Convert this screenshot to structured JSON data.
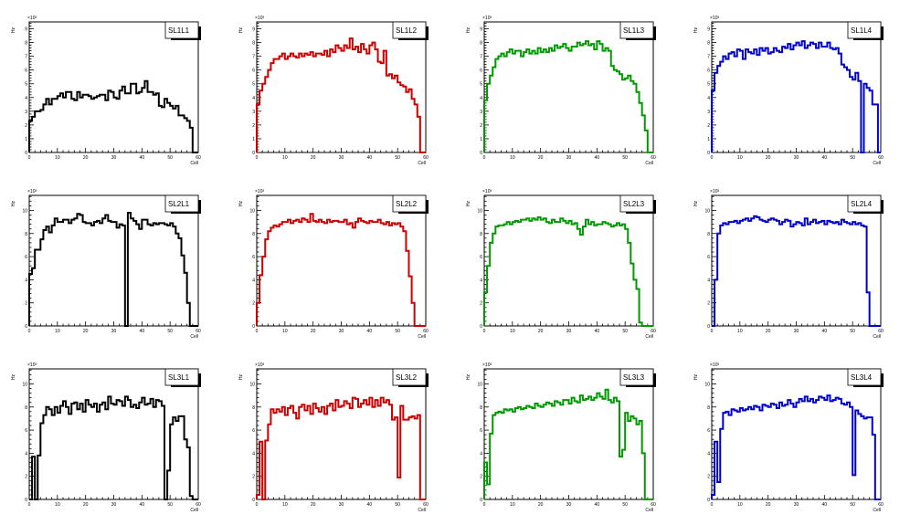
{
  "chart_data": [
    {
      "type": "bar",
      "title": "SL1L1",
      "color": "#000000",
      "xlabel": "Cell",
      "ylabel": "Hz",
      "exponent": "×10³",
      "xlim": [
        0,
        60
      ],
      "ylim": [
        0,
        9.5
      ],
      "yticks": [
        "0",
        "1",
        "2",
        "3",
        "4",
        "5",
        "6",
        "7",
        "8",
        "9"
      ],
      "ytick_values": [
        0,
        1,
        2,
        3,
        4,
        5,
        6,
        7,
        8,
        9
      ],
      "values": [
        2.3,
        2.6,
        3.0,
        3.0,
        3.1,
        3.5,
        3.9,
        3.5,
        3.9,
        3.9,
        4.1,
        4.3,
        4.0,
        4.4,
        4.4,
        3.9,
        3.8,
        4.4,
        4.0,
        4.2,
        4.2,
        4.1,
        3.9,
        4.0,
        4.1,
        4.2,
        4.2,
        3.8,
        4.5,
        4.4,
        4.0,
        3.9,
        4.5,
        4.8,
        4.3,
        4.3,
        5.0,
        5.0,
        4.3,
        4.4,
        4.7,
        5.2,
        4.4,
        4.4,
        4.2,
        4.3,
        3.4,
        3.3,
        3.9,
        3.6,
        3.4,
        3.2,
        3.4,
        2.7,
        2.7,
        2.5,
        2.3,
        1.8,
        0,
        0
      ]
    },
    {
      "type": "bar",
      "title": "SL1L2",
      "color": "#cc0000",
      "xlabel": "Cell",
      "ylabel": "Hz",
      "exponent": "×10³",
      "xlim": [
        0,
        60
      ],
      "ylim": [
        0,
        9.5
      ],
      "yticks": [
        "0",
        "1",
        "2",
        "3",
        "4",
        "5",
        "6",
        "7",
        "8",
        "9"
      ],
      "ytick_values": [
        0,
        1,
        2,
        3,
        4,
        5,
        6,
        7,
        8,
        9
      ],
      "values": [
        3.5,
        4.5,
        5.0,
        5.5,
        6.0,
        6.5,
        6.8,
        6.8,
        7.0,
        7.2,
        6.8,
        7.0,
        7.2,
        7.0,
        6.9,
        7.2,
        7.0,
        7.2,
        7.1,
        7.3,
        7.0,
        7.2,
        7.2,
        7.1,
        7.4,
        7.0,
        7.5,
        7.3,
        7.8,
        7.6,
        7.4,
        7.8,
        7.6,
        8.3,
        7.5,
        7.7,
        7.3,
        7.9,
        7.5,
        7.2,
        7.8,
        8.0,
        7.5,
        6.6,
        6.5,
        7.4,
        5.6,
        5.7,
        5.4,
        5.6,
        5.1,
        4.9,
        4.8,
        4.4,
        4.6,
        3.9,
        3.5,
        2.6,
        0,
        0
      ]
    },
    {
      "type": "bar",
      "title": "SL1L3",
      "color": "#009900",
      "xlabel": "Cell",
      "ylabel": "Hz",
      "exponent": "×10³",
      "xlim": [
        0,
        60
      ],
      "ylim": [
        0,
        9.5
      ],
      "yticks": [
        "0",
        "1",
        "2",
        "3",
        "4",
        "5",
        "6",
        "7",
        "8",
        "9"
      ],
      "ytick_values": [
        0,
        1,
        2,
        3,
        4,
        5,
        6,
        7,
        8,
        9
      ],
      "values": [
        3.8,
        5.0,
        5.6,
        6.2,
        6.8,
        7.0,
        7.2,
        7.0,
        7.3,
        7.5,
        7.2,
        7.4,
        7.4,
        7.0,
        7.3,
        7.5,
        7.2,
        7.4,
        7.2,
        7.6,
        7.3,
        7.5,
        7.3,
        7.6,
        7.4,
        7.8,
        7.6,
        7.7,
        7.9,
        7.6,
        7.4,
        7.7,
        7.7,
        8.0,
        7.8,
        7.9,
        8.1,
        7.8,
        7.9,
        7.5,
        8.1,
        7.9,
        7.4,
        7.6,
        7.4,
        6.3,
        6.0,
        5.9,
        5.7,
        5.3,
        5.4,
        5.6,
        5.2,
        5.0,
        4.4,
        3.6,
        2.7,
        1.6,
        0,
        0
      ]
    },
    {
      "type": "bar",
      "title": "SL1L4",
      "color": "#0000cc",
      "xlabel": "Cell",
      "ylabel": "Hz",
      "exponent": "×10³",
      "xlim": [
        0,
        60
      ],
      "ylim": [
        0,
        9.5
      ],
      "yticks": [
        "0",
        "1",
        "2",
        "3",
        "4",
        "5",
        "6",
        "7",
        "8",
        "9"
      ],
      "ytick_values": [
        0,
        1,
        2,
        3,
        4,
        5,
        6,
        7,
        8,
        9
      ],
      "values": [
        4.5,
        5.8,
        6.3,
        6.6,
        7.0,
        6.8,
        7.2,
        7.3,
        7.0,
        7.5,
        7.4,
        6.8,
        7.5,
        7.3,
        7.2,
        7.5,
        7.1,
        7.6,
        7.4,
        7.6,
        7.2,
        7.3,
        7.6,
        7.4,
        7.3,
        7.7,
        7.6,
        7.9,
        7.5,
        7.8,
        8.0,
        7.8,
        8.1,
        7.6,
        7.8,
        8.0,
        7.9,
        7.6,
        8.0,
        7.7,
        7.7,
        8.0,
        7.6,
        7.5,
        7.6,
        7.2,
        6.4,
        6.2,
        6.0,
        5.5,
        5.3,
        5.8,
        5.2,
        0,
        5.0,
        4.7,
        4.5,
        3.5,
        3.5,
        0
      ]
    },
    {
      "type": "bar",
      "title": "SL2L1",
      "color": "#000000",
      "xlabel": "Cell",
      "ylabel": "Hz",
      "exponent": "×10³",
      "xlim": [
        0,
        60
      ],
      "ylim": [
        0,
        11.3
      ],
      "yticks": [
        "0",
        "2",
        "4",
        "6",
        "8",
        "10"
      ],
      "ytick_values": [
        0,
        2,
        4,
        6,
        8,
        10
      ],
      "values": [
        4.5,
        5.0,
        6.6,
        6.6,
        7.5,
        8.3,
        8.6,
        8.1,
        8.7,
        9.3,
        9.0,
        9.0,
        9.2,
        9.2,
        8.9,
        9.2,
        9.3,
        9.7,
        9.6,
        9.0,
        8.9,
        8.9,
        8.7,
        9.0,
        9.1,
        8.9,
        9.3,
        9.6,
        9.1,
        9.0,
        9.0,
        8.5,
        8.8,
        8.7,
        0,
        9.8,
        9.3,
        9.1,
        8.8,
        8.4,
        9.2,
        9.2,
        8.8,
        8.7,
        8.9,
        8.8,
        8.9,
        8.9,
        8.8,
        8.7,
        8.9,
        8.6,
        8.0,
        7.6,
        6.1,
        4.6,
        2.0,
        0,
        0,
        0
      ]
    },
    {
      "type": "bar",
      "title": "SL2L2",
      "color": "#cc0000",
      "xlabel": "Cell",
      "ylabel": "Hz",
      "exponent": "×10³",
      "xlim": [
        0,
        60
      ],
      "ylim": [
        0,
        11.3
      ],
      "yticks": [
        "0",
        "2",
        "4",
        "6",
        "8",
        "10"
      ],
      "ytick_values": [
        0,
        2,
        4,
        6,
        8,
        10
      ],
      "values": [
        2.0,
        4.4,
        6.0,
        7.5,
        8.2,
        8.5,
        8.7,
        8.6,
        8.8,
        9.0,
        9.0,
        9.2,
        8.9,
        9.1,
        9.2,
        9.0,
        9.3,
        9.2,
        9.0,
        9.7,
        9.1,
        9.0,
        9.2,
        9.0,
        8.9,
        9.2,
        9.0,
        9.1,
        9.1,
        9.0,
        9.0,
        9.2,
        8.8,
        8.9,
        8.5,
        9.0,
        9.3,
        9.1,
        9.0,
        8.9,
        9.1,
        9.0,
        9.0,
        9.2,
        8.9,
        8.8,
        9.0,
        8.7,
        8.9,
        8.8,
        8.9,
        8.6,
        8.2,
        6.5,
        4.3,
        2.0,
        0,
        0,
        0,
        0
      ]
    },
    {
      "type": "bar",
      "title": "SL2L3",
      "color": "#009900",
      "xlabel": "Cell",
      "ylabel": "Hz",
      "exponent": "×10³",
      "xlim": [
        0,
        60
      ],
      "ylim": [
        0,
        11.3
      ],
      "yticks": [
        "0",
        "2",
        "4",
        "6",
        "8",
        "10"
      ],
      "ytick_values": [
        0,
        2,
        4,
        6,
        8,
        10
      ],
      "values": [
        2.9,
        5.2,
        7.2,
        8.0,
        8.6,
        8.7,
        8.7,
        8.8,
        9.0,
        8.8,
        9.0,
        9.1,
        9.0,
        9.2,
        9.2,
        9.3,
        9.1,
        9.3,
        9.2,
        9.4,
        9.2,
        9.3,
        9.0,
        8.9,
        9.2,
        9.0,
        9.0,
        9.3,
        9.1,
        8.9,
        9.1,
        8.8,
        8.9,
        8.4,
        7.9,
        8.6,
        9.2,
        8.8,
        9.0,
        8.7,
        8.8,
        8.8,
        9.0,
        8.9,
        8.8,
        8.6,
        8.7,
        8.9,
        8.7,
        8.8,
        8.4,
        7.2,
        5.4,
        4.0,
        3.2,
        0.3,
        0,
        0,
        0,
        0
      ]
    },
    {
      "type": "bar",
      "title": "SL2L4",
      "color": "#0000cc",
      "xlabel": "Cell",
      "ylabel": "Hz",
      "exponent": "×10³",
      "xlim": [
        0,
        60
      ],
      "ylim": [
        0,
        11.3
      ],
      "yticks": [
        "0",
        "2",
        "4",
        "6",
        "8",
        "10"
      ],
      "ytick_values": [
        0,
        2,
        4,
        6,
        8,
        10
      ],
      "values": [
        0,
        4.0,
        8.0,
        8.7,
        8.9,
        8.8,
        9.0,
        9.0,
        9.1,
        8.9,
        9.1,
        9.2,
        9.3,
        9.1,
        9.3,
        9.5,
        9.4,
        9.2,
        9.1,
        9.0,
        9.2,
        9.3,
        9.2,
        9.1,
        8.8,
        9.0,
        9.2,
        9.1,
        8.6,
        8.8,
        9.0,
        8.9,
        8.7,
        9.3,
        8.8,
        9.0,
        9.2,
        8.9,
        9.0,
        9.1,
        8.8,
        9.1,
        9.0,
        8.9,
        9.0,
        8.8,
        9.2,
        9.0,
        8.9,
        8.8,
        9.0,
        8.8,
        8.9,
        8.7,
        8.6,
        2.9,
        0,
        0,
        0,
        0
      ]
    },
    {
      "type": "bar",
      "title": "SL3L1",
      "color": "#000000",
      "xlabel": "Cell",
      "ylabel": "Hz",
      "exponent": "×10³",
      "xlim": [
        0,
        60
      ],
      "ylim": [
        0,
        11.3
      ],
      "yticks": [
        "0",
        "2",
        "4",
        "6",
        "8",
        "10"
      ],
      "ytick_values": [
        0,
        2,
        4,
        6,
        8,
        10
      ],
      "values": [
        0,
        3.7,
        0,
        3.8,
        6.6,
        7.3,
        8.0,
        7.8,
        7.3,
        8.0,
        7.5,
        8.1,
        8.5,
        8.0,
        7.4,
        8.3,
        8.4,
        7.8,
        8.3,
        7.6,
        8.6,
        8.2,
        8.0,
        8.3,
        7.6,
        8.2,
        8.4,
        7.8,
        8.9,
        8.3,
        8.2,
        8.6,
        8.5,
        8.1,
        8.9,
        8.6,
        8.0,
        8.2,
        7.9,
        8.4,
        8.8,
        8.2,
        8.3,
        8.7,
        8.0,
        8.6,
        8.5,
        8.1,
        0,
        2.5,
        6.5,
        7.1,
        6.8,
        7.2,
        7.2,
        5.2,
        4.5,
        0.3,
        0,
        0
      ]
    },
    {
      "type": "bar",
      "title": "SL3L2",
      "color": "#cc0000",
      "xlabel": "Cell",
      "ylabel": "Hz",
      "exponent": "×10³",
      "xlim": [
        0,
        60
      ],
      "ylim": [
        0,
        11.3
      ],
      "yticks": [
        "0",
        "2",
        "4",
        "6",
        "8",
        "10"
      ],
      "ytick_values": [
        0,
        2,
        4,
        6,
        8,
        10
      ],
      "values": [
        0.4,
        5.0,
        0,
        5.1,
        6.5,
        7.8,
        7.5,
        7.8,
        7.6,
        8.0,
        7.3,
        7.9,
        8.1,
        7.5,
        7.0,
        8.0,
        8.2,
        7.7,
        8.1,
        7.4,
        8.3,
        7.9,
        7.6,
        8.0,
        7.4,
        8.1,
        8.3,
        7.7,
        8.6,
        8.0,
        8.1,
        8.5,
        8.3,
        7.9,
        8.8,
        8.7,
        8.0,
        8.3,
        8.6,
        8.2,
        8.8,
        8.0,
        8.6,
        8.1,
        8.8,
        8.4,
        8.6,
        8.2,
        6.9,
        7.1,
        1.9,
        8.1,
        6.9,
        6.9,
        7.1,
        7.2,
        7.0,
        7.3,
        0,
        0
      ]
    },
    {
      "type": "bar",
      "title": "SL3L3",
      "color": "#009900",
      "xlabel": "Cell",
      "ylabel": "Hz",
      "exponent": "×10³",
      "xlim": [
        0,
        60
      ],
      "ylim": [
        0,
        11.3
      ],
      "yticks": [
        "0",
        "2",
        "4",
        "6",
        "8",
        "10"
      ],
      "ytick_values": [
        0,
        2,
        4,
        6,
        8,
        10
      ],
      "values": [
        3.2,
        1.3,
        5.7,
        7.3,
        7.5,
        7.6,
        7.5,
        7.8,
        7.7,
        7.8,
        7.6,
        7.9,
        8.0,
        7.8,
        7.9,
        8.1,
        8.0,
        7.9,
        8.3,
        8.1,
        8.0,
        8.2,
        8.4,
        8.3,
        8.1,
        8.5,
        8.4,
        8.2,
        8.6,
        8.6,
        8.3,
        8.8,
        8.5,
        8.4,
        9.0,
        8.6,
        8.7,
        8.9,
        8.6,
        8.8,
        9.2,
        8.9,
        8.7,
        9.5,
        8.6,
        8.4,
        8.8,
        8.5,
        3.7,
        4.3,
        7.5,
        6.8,
        7.2,
        7.0,
        6.5,
        6.8,
        4.0,
        0,
        0,
        0
      ]
    },
    {
      "type": "bar",
      "title": "SL3L4",
      "color": "#0000cc",
      "xlabel": "Cell",
      "ylabel": "Hz",
      "exponent": "×10³",
      "xlim": [
        0,
        60
      ],
      "ylim": [
        0,
        11.3
      ],
      "yticks": [
        "0",
        "2",
        "4",
        "6",
        "8",
        "10"
      ],
      "ytick_values": [
        0,
        2,
        4,
        6,
        8,
        10
      ],
      "values": [
        0.4,
        5.0,
        1.5,
        6.1,
        7.5,
        7.6,
        7.3,
        7.8,
        7.7,
        7.6,
        7.9,
        7.7,
        7.8,
        8.0,
        7.8,
        8.1,
        8.0,
        7.7,
        8.2,
        8.1,
        8.0,
        8.3,
        8.2,
        7.9,
        8.4,
        8.1,
        8.2,
        8.6,
        8.3,
        8.0,
        8.4,
        8.7,
        8.5,
        8.9,
        8.5,
        8.7,
        8.4,
        8.6,
        8.9,
        8.8,
        8.6,
        9.0,
        8.5,
        8.6,
        8.8,
        8.7,
        8.3,
        8.2,
        8.4,
        8.0,
        2.1,
        7.7,
        7.4,
        7.2,
        7.0,
        7.1,
        7.1,
        5.6,
        0,
        0
      ]
    }
  ],
  "xticks": [
    "0",
    "10",
    "20",
    "30",
    "40",
    "50",
    "60"
  ],
  "xtick_values": [
    0,
    10,
    20,
    30,
    40,
    50,
    60
  ]
}
